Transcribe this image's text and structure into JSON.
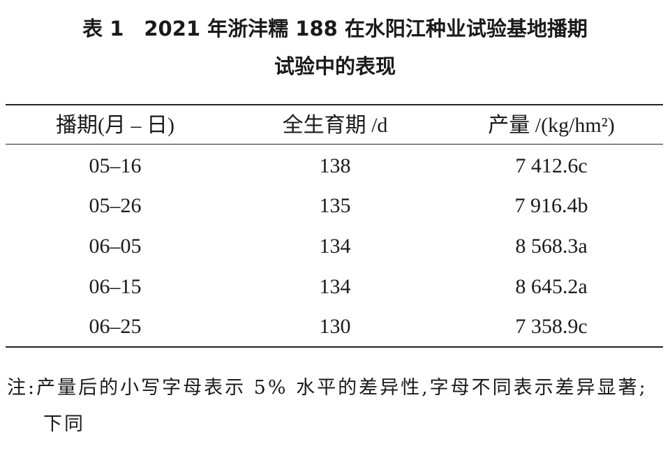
{
  "header": {
    "title": [
      "表 1　2021 年浙沣糯 188 在水阳江种业试验基地播期",
      "试验中的表现"
    ]
  },
  "table": {
    "columns": [
      "播期(月 – 日)",
      "全生育期 /d",
      "产量 /(kg/hm²)"
    ],
    "rows": [
      [
        "05–16",
        "138",
        "7 412.6c"
      ],
      [
        "05–26",
        "135",
        "7 916.4b"
      ],
      [
        "06–05",
        "134",
        "8 568.3a"
      ],
      [
        "06–15",
        "134",
        "8 645.2a"
      ],
      [
        "06–25",
        "130",
        "7 358.9c"
      ]
    ]
  },
  "note": "注:产量后的小写字母表示 5% 水平的差异性,字母不同表示差异显著;下同"
}
